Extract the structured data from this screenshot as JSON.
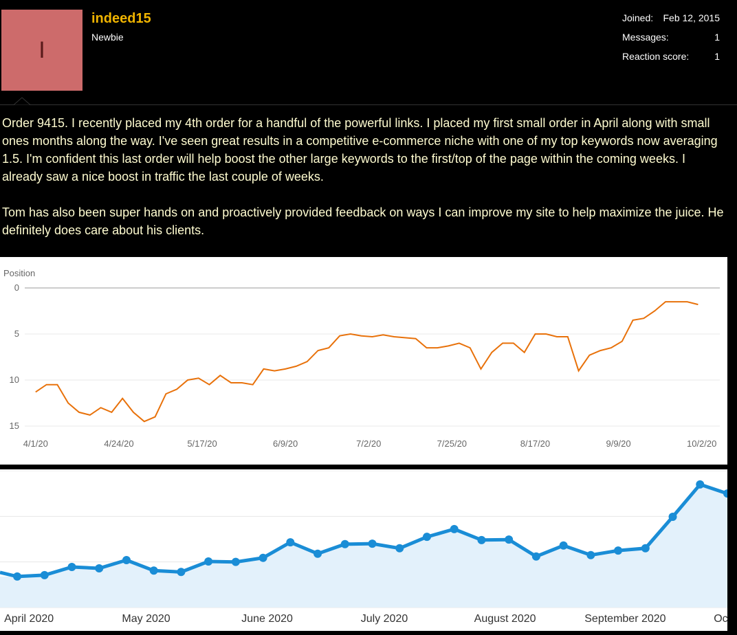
{
  "post": {
    "user": {
      "avatar_letter": "I",
      "name": "indeed15",
      "title": "Newbie",
      "stats": [
        {
          "label": "Joined:",
          "value": "Feb 12, 2015"
        },
        {
          "label": "Messages:",
          "value": 1
        },
        {
          "label": "Reaction score:",
          "value": 1
        }
      ]
    },
    "body": [
      "Order 9415. I recently placed my 4th order for a handful of the powerful links. I placed my first small order in April along with small ones months along the way. I've seen great results in a competitive e-commerce niche with one of my top keywords now averaging 1.5. I'm confident this last order will help boost the other large keywords to the first/top of the page within the coming weeks. I already saw a nice boost in traffic the last couple of weeks.",
      "Tom has also been super hands on and proactively provided feedback on ways I can improve my site to help maximize the juice. He definitely does care about his clients."
    ]
  },
  "chart_data": [
    {
      "type": "line",
      "y_label": "Position",
      "color": "#e8710a",
      "y_inverted": true,
      "grid": true,
      "x": [
        "4/1/20",
        "4/4/20",
        "4/7/20",
        "4/10/20",
        "4/13/20",
        "4/16/20",
        "4/19/20",
        "4/22/20",
        "4/25/20",
        "4/28/20",
        "5/1/20",
        "5/4/20",
        "5/7/20",
        "5/10/20",
        "5/13/20",
        "5/16/20",
        "5/19/20",
        "5/22/20",
        "5/25/20",
        "5/28/20",
        "5/31/20",
        "6/3/20",
        "6/6/20",
        "6/9/20",
        "6/12/20",
        "6/15/20",
        "6/18/20",
        "6/21/20",
        "6/24/20",
        "6/27/20",
        "6/30/20",
        "7/3/20",
        "7/6/20",
        "7/9/20",
        "7/12/20",
        "7/15/20",
        "7/18/20",
        "7/21/20",
        "7/24/20",
        "7/27/20",
        "7/30/20",
        "8/2/20",
        "8/5/20",
        "8/8/20",
        "8/11/20",
        "8/14/20",
        "8/17/20",
        "8/20/20",
        "8/23/20",
        "8/26/20",
        "8/29/20",
        "9/1/20",
        "9/4/20",
        "9/7/20",
        "9/10/20",
        "9/13/20",
        "9/16/20",
        "9/19/20",
        "9/22/20",
        "9/25/20",
        "9/28/20",
        "10/1/20"
      ],
      "values": [
        11.3,
        10.5,
        10.5,
        12.5,
        13.5,
        13.8,
        13,
        13.5,
        12,
        13.5,
        14.5,
        14,
        11.5,
        11,
        10,
        9.8,
        10.5,
        9.5,
        10.3,
        10.3,
        10.5,
        8.8,
        9,
        8.8,
        8.5,
        8,
        6.8,
        6.5,
        5.2,
        5,
        5.2,
        5.3,
        5.1,
        5.3,
        5.4,
        5.5,
        6.5,
        6.5,
        6.3,
        6,
        6.5,
        8.8,
        7,
        6,
        6,
        7,
        5,
        5,
        5.3,
        5.3,
        9,
        7.3,
        6.8,
        6.5,
        5.8,
        3.5,
        3.3,
        2.5,
        1.5,
        1.5,
        1.5,
        1.8
      ],
      "xlim": [
        "3/29/20",
        "10/7/20"
      ],
      "xticks": [
        "4/1/20",
        "4/24/20",
        "5/17/20",
        "6/9/20",
        "7/2/20",
        "7/25/20",
        "8/17/20",
        "9/9/20",
        "10/2/20"
      ],
      "ylim": [
        0,
        15
      ],
      "yticks": [
        0,
        5,
        10,
        15
      ]
    },
    {
      "type": "area",
      "color": "#1a8dd6",
      "fill": "#e3f1fb",
      "grid": true,
      "tick_labels": false,
      "values": [
        0.68,
        0.71,
        0.89,
        0.86,
        1.04,
        0.81,
        0.78,
        1.01,
        1.0,
        1.09,
        1.43,
        1.18,
        1.39,
        1.4,
        1.3,
        1.55,
        1.72,
        1.48,
        1.49,
        1.12,
        1.36,
        1.15,
        1.25,
        1.3,
        1.99,
        2.7,
        2.5
      ],
      "xlim": [
        -0.58,
        26
      ],
      "xticks": [
        {
          "value": 0.43,
          "label": "April 2020"
        },
        {
          "value": 4.72,
          "label": "May 2020"
        },
        {
          "value": 9.15,
          "label": "June 2020"
        },
        {
          "value": 13.44,
          "label": "July 2020"
        },
        {
          "value": 17.86,
          "label": "August 2020"
        },
        {
          "value": 22.26,
          "label": "September 2020"
        },
        {
          "value": 25.76,
          "label": "Oc"
        }
      ],
      "ylim": [
        0,
        3
      ],
      "yticks": [
        0,
        1,
        2,
        3
      ]
    }
  ]
}
